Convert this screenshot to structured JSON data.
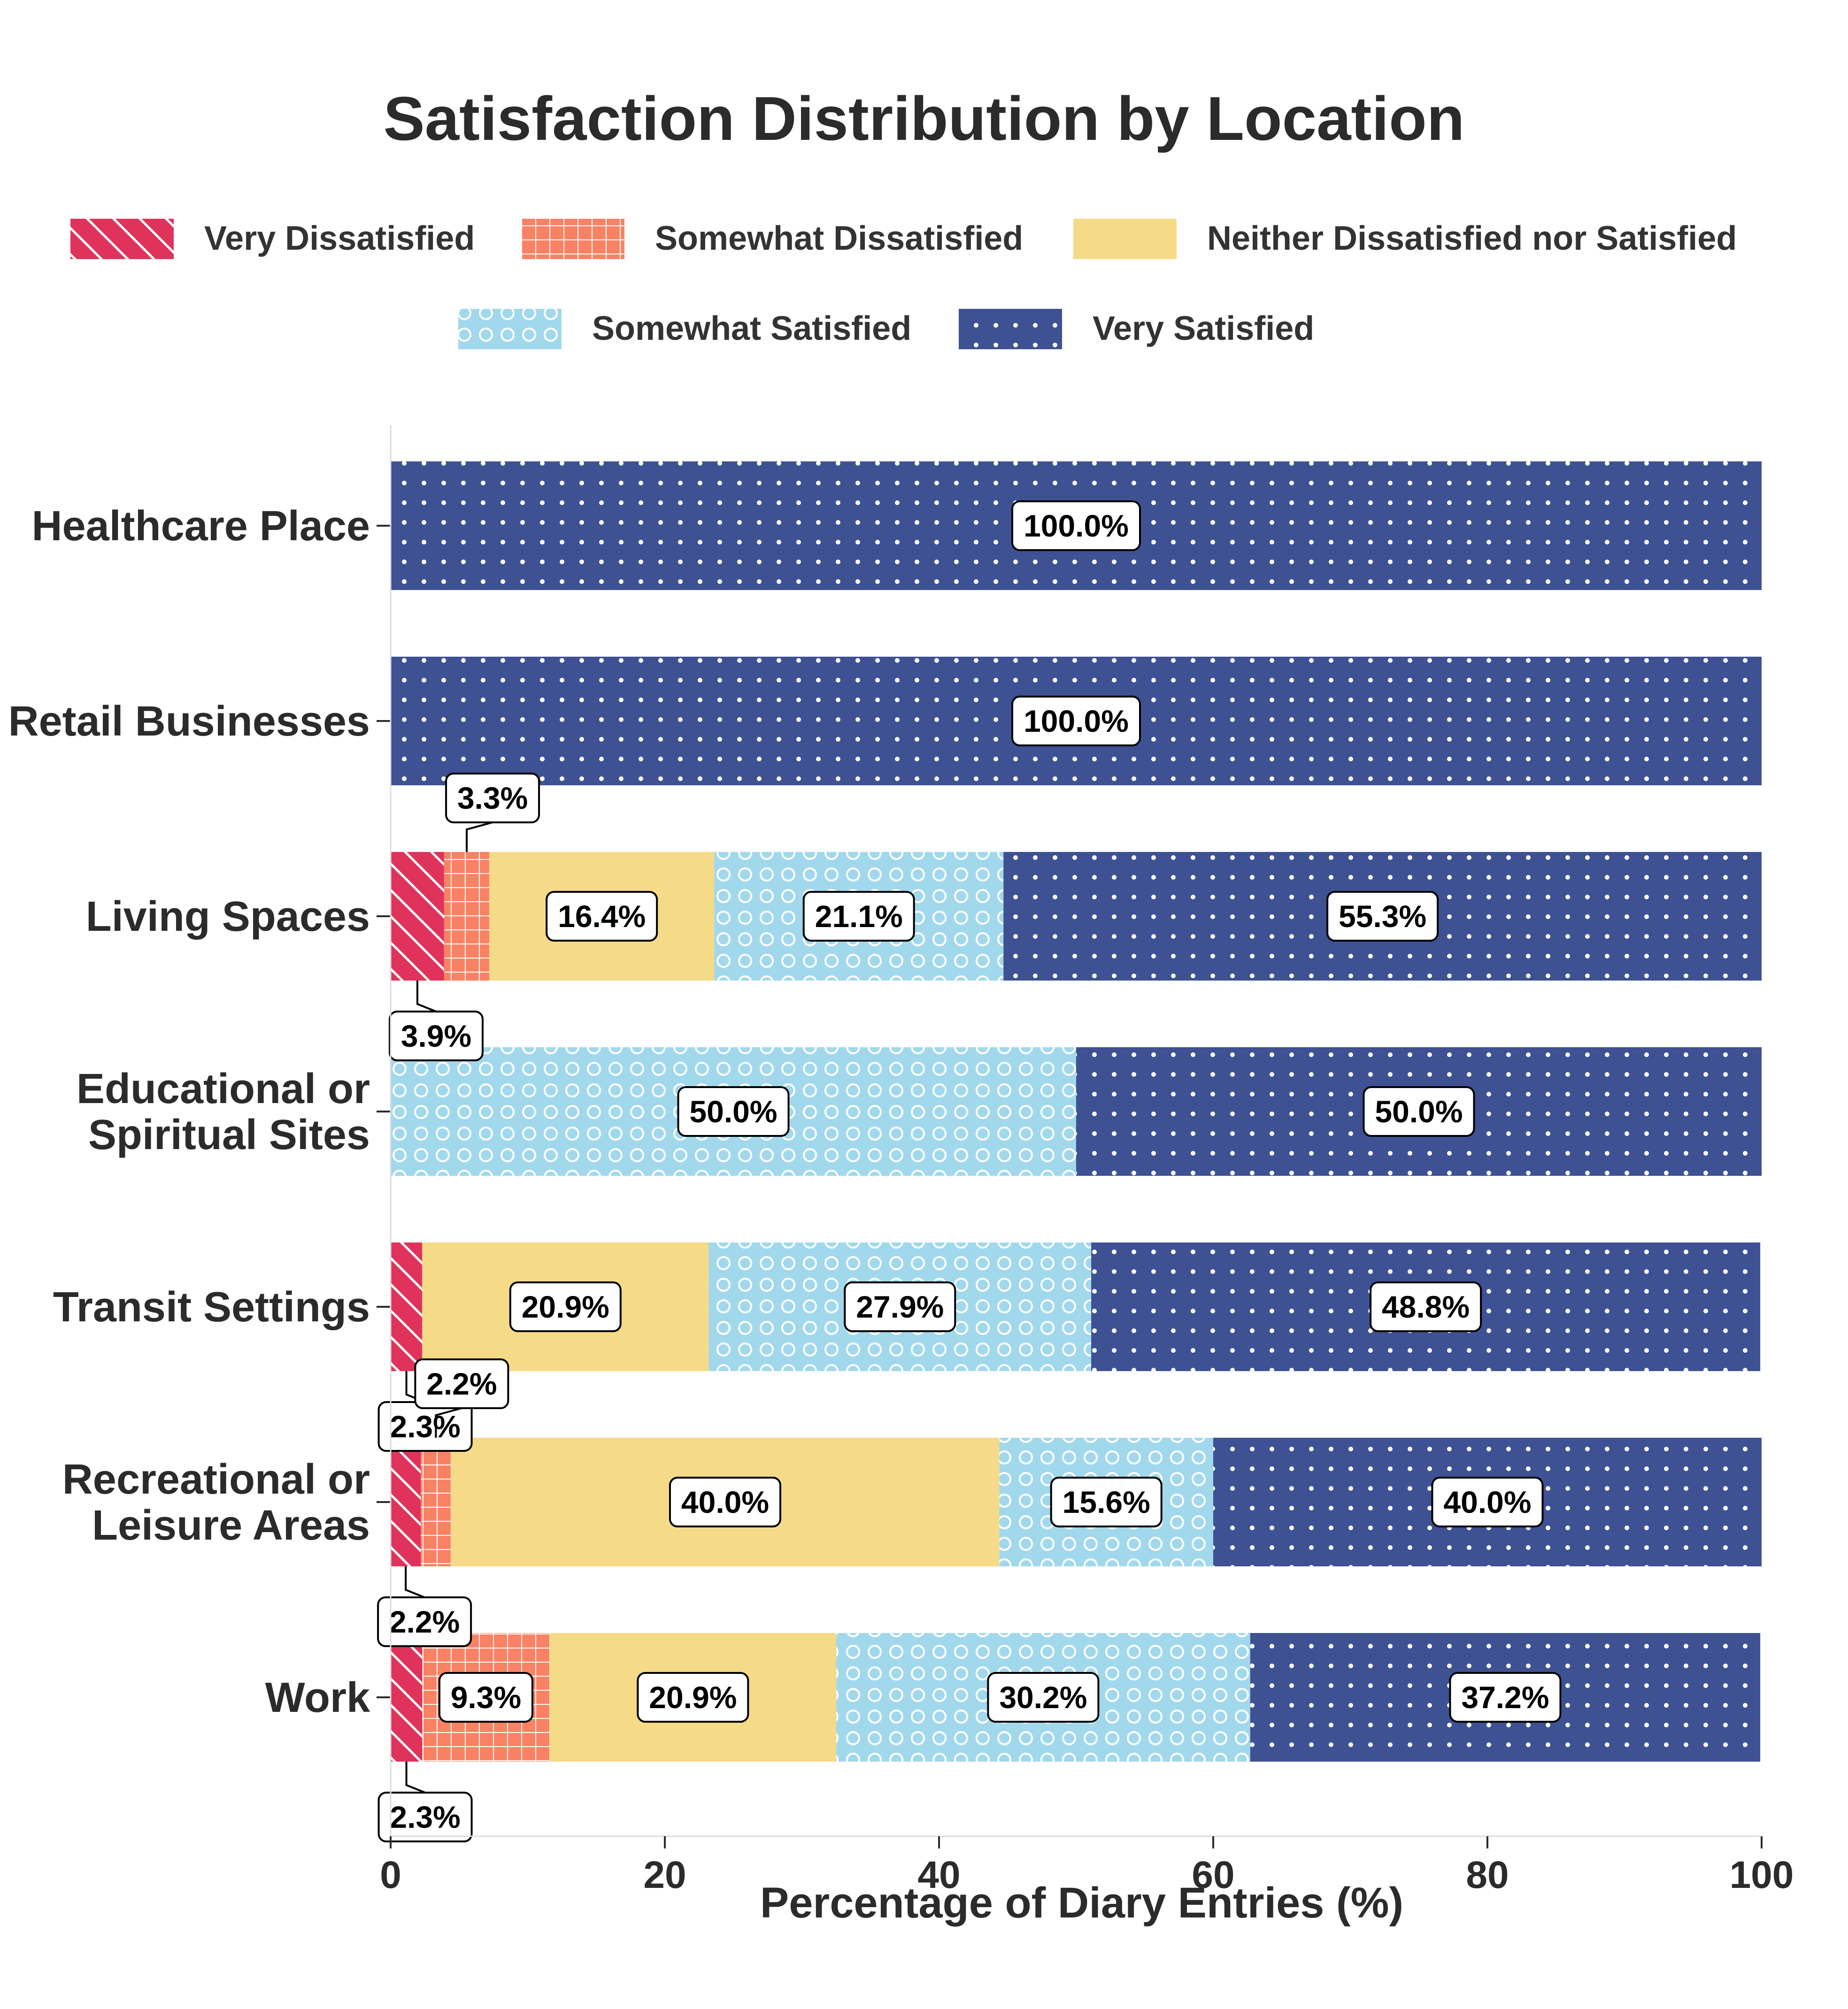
{
  "chart_data": {
    "type": "bar",
    "orientation": "horizontal",
    "stacked": true,
    "title": "Satisfaction Distribution by Location",
    "xlabel": "Percentage of Diary Entries (%)",
    "ylabel": "",
    "xlim": [
      0,
      100
    ],
    "xticks": [
      0,
      20,
      40,
      60,
      80,
      100
    ],
    "grid": false,
    "legend_position": "top-center",
    "categories": [
      "Healthcare Place",
      "Retail Businesses",
      "Living Spaces",
      "Educational or Spiritual Sites",
      "Transit Settings",
      "Recreational or Leisure Areas",
      "Work"
    ],
    "category_lines": [
      [
        "Healthcare Place"
      ],
      [
        "Retail Businesses"
      ],
      [
        "Living Spaces"
      ],
      [
        "Educational or",
        "Spiritual Sites"
      ],
      [
        "Transit Settings"
      ],
      [
        "Recreational or",
        "Leisure Areas"
      ],
      [
        "Work"
      ]
    ],
    "series": [
      {
        "name": "Very Dissatisfied",
        "color": "#e0335b",
        "pattern": "diagonal-hatch",
        "values": [
          0,
          0,
          3.9,
          0,
          2.3,
          2.2,
          2.3
        ]
      },
      {
        "name": "Somewhat Dissatisfied",
        "color": "#fa8264",
        "pattern": "grid",
        "values": [
          0,
          0,
          3.3,
          0,
          0,
          2.2,
          9.3
        ]
      },
      {
        "name": "Neither Dissatisfied nor Satisfied",
        "color": "#f5da87",
        "pattern": "none",
        "values": [
          0,
          0,
          16.4,
          0,
          20.9,
          40.0,
          20.9
        ]
      },
      {
        "name": "Somewhat Satisfied",
        "color": "#a2d8ec",
        "pattern": "circles",
        "values": [
          0,
          0,
          21.1,
          50.0,
          27.9,
          15.6,
          30.2
        ]
      },
      {
        "name": "Very Satisfied",
        "color": "#3e5193",
        "pattern": "dots",
        "values": [
          100.0,
          100.0,
          55.3,
          50.0,
          48.8,
          40.0,
          37.2
        ]
      }
    ],
    "annotations": [
      {
        "category": "Living Spaces",
        "series": "Very Dissatisfied",
        "text": "3.9%",
        "placement": "below"
      },
      {
        "category": "Living Spaces",
        "series": "Somewhat Dissatisfied",
        "text": "3.3%",
        "placement": "above"
      },
      {
        "category": "Transit Settings",
        "series": "Very Dissatisfied",
        "text": "2.3%",
        "placement": "below"
      },
      {
        "category": "Recreational or Leisure Areas",
        "series": "Very Dissatisfied",
        "text": "2.2%",
        "placement": "below"
      },
      {
        "category": "Recreational or Leisure Areas",
        "series": "Somewhat Dissatisfied",
        "text": "2.2%",
        "placement": "above"
      },
      {
        "category": "Work",
        "series": "Very Dissatisfied",
        "text": "2.3%",
        "placement": "below"
      }
    ]
  }
}
